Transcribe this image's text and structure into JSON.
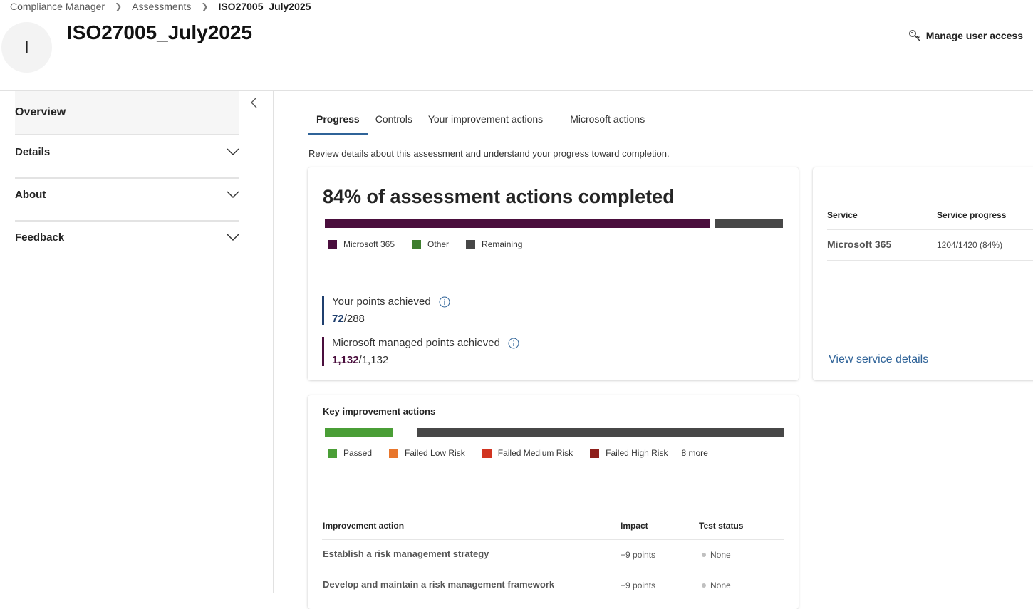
{
  "breadcrumb": {
    "items": [
      "Compliance Manager",
      "Assessments"
    ],
    "current": "ISO27005_July2025"
  },
  "header": {
    "avatar_initial": "I",
    "title": "ISO27005_July2025",
    "manage_access_label": "Manage user access",
    "manage_access_icon": "key-icon"
  },
  "sidebar": {
    "collapse_icon": "chevron-left-icon",
    "items": [
      {
        "label": "Overview"
      },
      {
        "label": "Details"
      },
      {
        "label": "About"
      },
      {
        "label": "Feedback"
      }
    ]
  },
  "tabs": [
    {
      "label": "Progress",
      "active": true
    },
    {
      "label": "Controls"
    },
    {
      "label": "Your improvement actions"
    },
    {
      "label": "Microsoft actions"
    }
  ],
  "intro": "Review details about this assessment and understand your progress toward completion.",
  "progress_card": {
    "heading": "84% of assessment actions completed",
    "bar": {
      "completed_percent": 84
    },
    "legend": [
      {
        "label": "Microsoft 365",
        "color": "#4a0e3d"
      },
      {
        "label": "Other",
        "color": "#3e7d2e"
      },
      {
        "label": "Remaining",
        "color": "#474747"
      }
    ],
    "your_points": {
      "label": "Your points achieved",
      "achieved": "72",
      "total": "/288",
      "accent": "#1f3f6e"
    },
    "ms_points": {
      "label": "Microsoft managed points achieved",
      "achieved": "1,132",
      "total": "/1,132",
      "accent": "#4a0e3d"
    }
  },
  "service_card": {
    "col_service": "Service",
    "col_progress": "Service progress",
    "rows": [
      {
        "service": "Microsoft 365",
        "progress": "1204/1420 (84%)"
      }
    ],
    "link": "View service details"
  },
  "key_actions": {
    "title": "Key improvement actions",
    "legend": [
      {
        "label": "Passed",
        "color": "#4a9e36"
      },
      {
        "label": "Failed Low Risk",
        "color": "#e8762c"
      },
      {
        "label": "Failed Medium Risk",
        "color": "#d13420"
      },
      {
        "label": "Failed High Risk",
        "color": "#8e1f1b"
      }
    ],
    "more": "8 more",
    "columns": [
      "Improvement action",
      "Impact",
      "Test status"
    ],
    "rows": [
      {
        "action": "Establish a risk management strategy",
        "impact": "+9 points",
        "status": "None"
      },
      {
        "action": "Develop and maintain a risk management framework",
        "impact": "+9 points",
        "status": "None"
      }
    ]
  }
}
